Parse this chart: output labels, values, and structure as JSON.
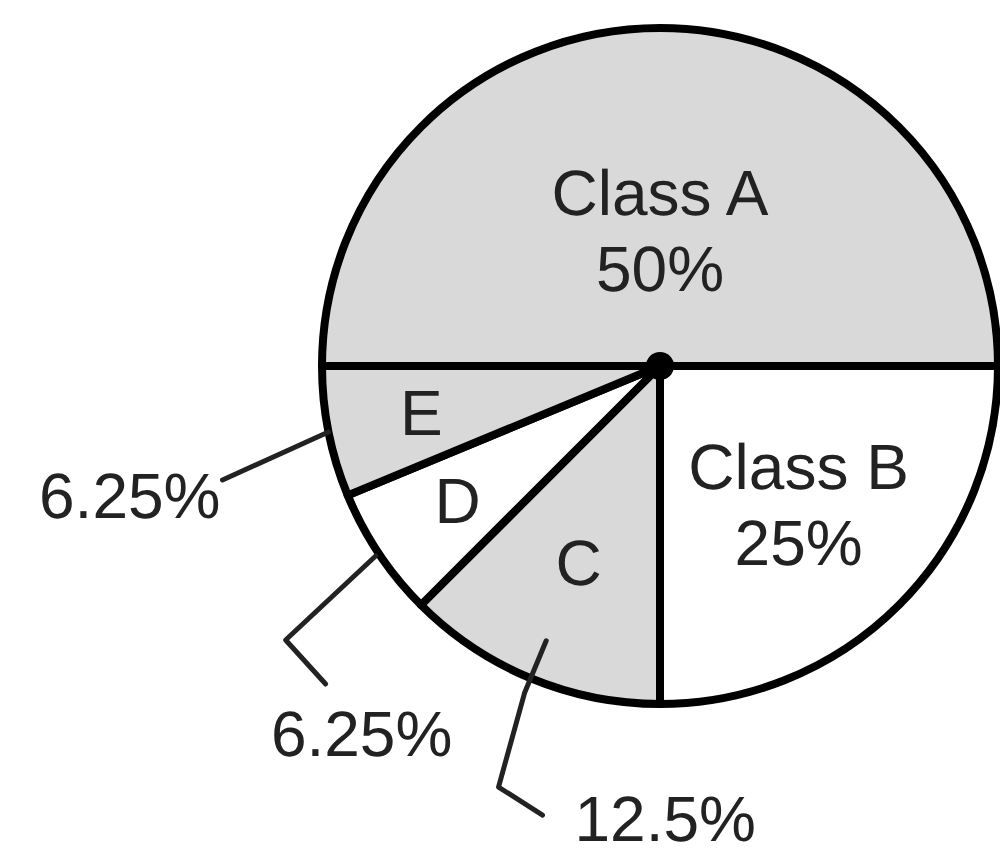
{
  "chart_data": {
    "type": "pie",
    "categories": [
      "Class A",
      "Class B",
      "C",
      "D",
      "E"
    ],
    "values": [
      50,
      25,
      12.5,
      6.25,
      6.25
    ],
    "colors": [
      "#d9d9d9",
      "#ffffff",
      "#d9d9d9",
      "#ffffff",
      "#d9d9d9"
    ],
    "value_labels": [
      "50%",
      "25%",
      "12.5%",
      "6.25%",
      "6.25%"
    ]
  }
}
